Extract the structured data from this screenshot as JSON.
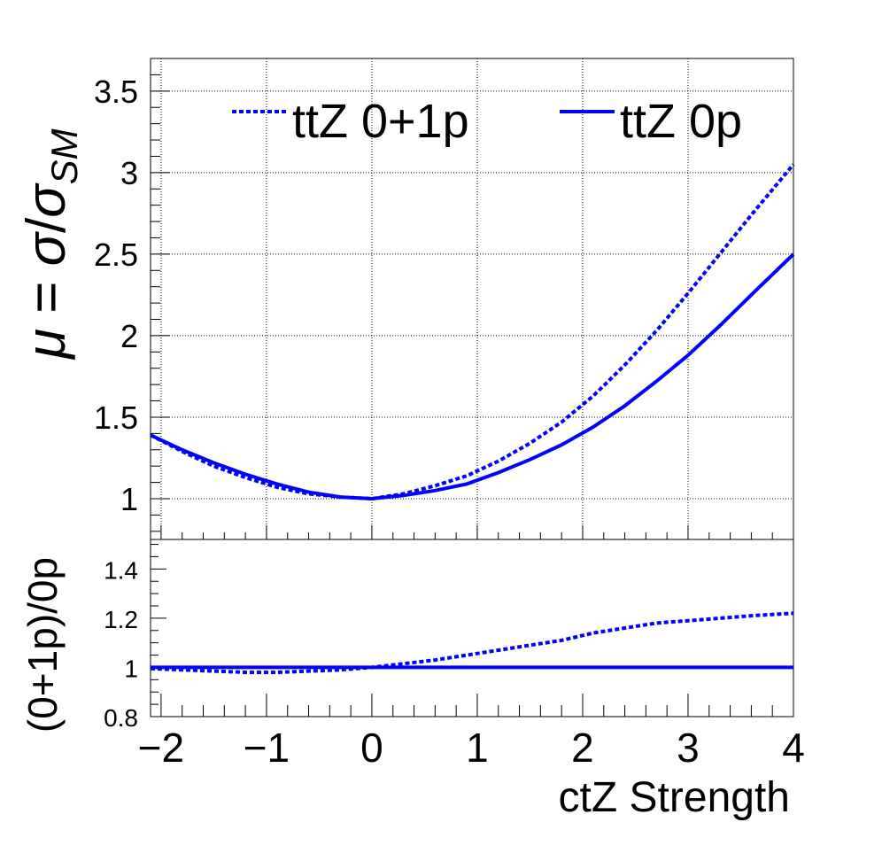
{
  "chart_data": [
    {
      "type": "line",
      "panel": "main",
      "xlim": [
        -2.1,
        4.0
      ],
      "ylim": [
        0.75,
        3.7
      ],
      "grid": true,
      "legend_position": "top",
      "ylabel_parts": {
        "mu": "μ",
        "eq": " = ",
        "sigma": "σ",
        "slash": "/",
        "sigma2": "σ",
        "sub": "SM"
      },
      "yticks": [
        "1",
        "1.5",
        "2",
        "2.5",
        "3",
        "3.5"
      ],
      "ytick_values": [
        1,
        1.5,
        2,
        2.5,
        3,
        3.5
      ],
      "series": [
        {
          "name": "ttZ 0+1p",
          "style": "dashed",
          "color": "#0000ff",
          "x": [
            -2.1,
            -1.8,
            -1.5,
            -1.2,
            -0.9,
            -0.6,
            -0.3,
            0.0,
            0.3,
            0.6,
            0.9,
            1.2,
            1.5,
            1.8,
            2.1,
            2.4,
            2.7,
            3.0,
            3.3,
            3.6,
            4.0
          ],
          "y": [
            1.39,
            1.29,
            1.2,
            1.13,
            1.07,
            1.03,
            1.01,
            1.0,
            1.03,
            1.08,
            1.14,
            1.23,
            1.34,
            1.47,
            1.63,
            1.82,
            2.03,
            2.26,
            2.5,
            2.74,
            3.05
          ]
        },
        {
          "name": "ttZ 0p",
          "style": "solid",
          "color": "#0000ff",
          "x": [
            -2.1,
            -1.8,
            -1.5,
            -1.2,
            -0.9,
            -0.6,
            -0.3,
            0.0,
            0.3,
            0.6,
            0.9,
            1.2,
            1.5,
            1.8,
            2.1,
            2.4,
            2.7,
            3.0,
            3.3,
            3.6,
            4.0
          ],
          "y": [
            1.39,
            1.3,
            1.22,
            1.15,
            1.09,
            1.04,
            1.01,
            1.0,
            1.02,
            1.05,
            1.09,
            1.16,
            1.24,
            1.33,
            1.44,
            1.57,
            1.72,
            1.88,
            2.06,
            2.25,
            2.5
          ]
        }
      ]
    },
    {
      "type": "line",
      "panel": "ratio",
      "xlim": [
        -2.1,
        4.0
      ],
      "ylim": [
        0.8,
        1.52
      ],
      "grid": false,
      "xlabel": "ctZ Strength",
      "ylabel": "(0+1p)/0p",
      "xticks": [
        "−2",
        "−1",
        "0",
        "1",
        "2",
        "3",
        "4"
      ],
      "xtick_values": [
        -2,
        -1,
        0,
        1,
        2,
        3,
        4
      ],
      "yticks": [
        "0.8",
        "1",
        "1.2",
        "1.4"
      ],
      "ytick_values": [
        0.8,
        1.0,
        1.2,
        1.4
      ],
      "series": [
        {
          "name": "",
          "style": "dashed",
          "color": "#0000ff",
          "x": [
            -2.1,
            -1.8,
            -1.5,
            -1.2,
            -0.9,
            -0.6,
            -0.3,
            0.0,
            0.3,
            0.6,
            0.9,
            1.2,
            1.5,
            1.8,
            2.1,
            2.4,
            2.7,
            3.0,
            3.3,
            3.6,
            4.0
          ],
          "y": [
            0.995,
            0.99,
            0.985,
            0.98,
            0.98,
            0.985,
            0.99,
            1.0,
            1.015,
            1.03,
            1.05,
            1.07,
            1.09,
            1.11,
            1.14,
            1.16,
            1.18,
            1.19,
            1.2,
            1.21,
            1.22
          ]
        },
        {
          "name": "",
          "style": "solid",
          "color": "#0000ff",
          "x": [
            -2.1,
            4.0
          ],
          "y": [
            1.0,
            1.0
          ]
        }
      ]
    }
  ]
}
